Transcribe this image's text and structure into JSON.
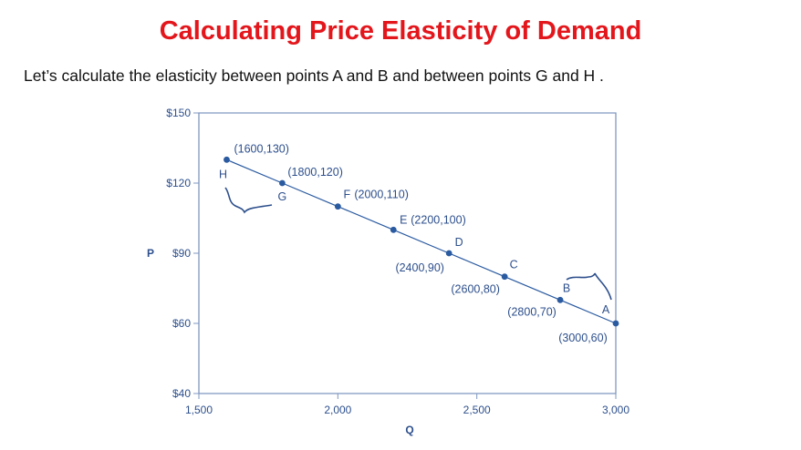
{
  "title": "Calculating Price Elasticity of Demand",
  "subtitle": "Let’s calculate the elasticity between points A and B and between points G and H .",
  "chart_data": {
    "type": "line",
    "xlabel": "Q",
    "ylabel": "P",
    "x_ticks": [
      1500,
      2000,
      2500,
      3000
    ],
    "x_tick_labels": [
      "1,500",
      "2,000",
      "2,500",
      "3,000"
    ],
    "y_ticks": [
      40,
      60,
      90,
      120,
      150
    ],
    "y_tick_labels": [
      "$40",
      "$60",
      "$90",
      "$120",
      "$150"
    ],
    "xlim": [
      1500,
      3000
    ],
    "ylim": [
      40,
      150
    ],
    "grid": false,
    "series": [
      {
        "points": [
          {
            "letter": "H",
            "q": 1600,
            "p": 130,
            "label": "(1600,130)"
          },
          {
            "letter": "G",
            "q": 1800,
            "p": 120,
            "label": "(1800,120)"
          },
          {
            "letter": "F",
            "q": 2000,
            "p": 110,
            "label": "(2000,110)"
          },
          {
            "letter": "E",
            "q": 2200,
            "p": 100,
            "label": "(2200,100)"
          },
          {
            "letter": "D",
            "q": 2400,
            "p": 90,
            "label": "(2400,90)"
          },
          {
            "letter": "C",
            "q": 2600,
            "p": 80,
            "label": "(2600,80)"
          },
          {
            "letter": "B",
            "q": 2800,
            "p": 70,
            "label": "(2800,70)"
          },
          {
            "letter": "A",
            "q": 3000,
            "p": 60,
            "label": "(3000,60)"
          }
        ]
      }
    ],
    "color": "#2a5aa0"
  }
}
